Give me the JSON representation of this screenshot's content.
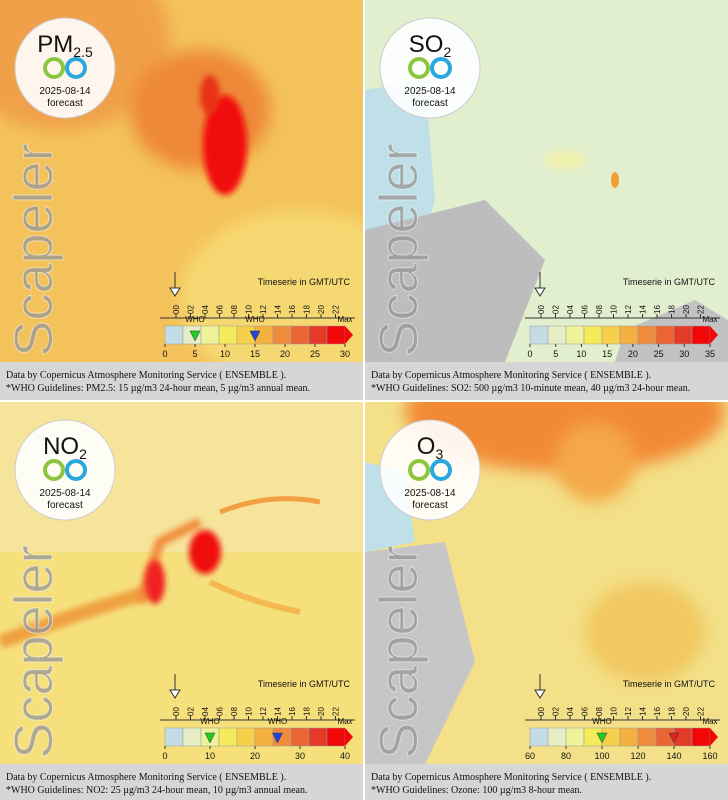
{
  "scale_colors": [
    "#c4dce6",
    "#e6eec6",
    "#eef29a",
    "#f4ea5a",
    "#f6d04a",
    "#f4b040",
    "#ee8c3c",
    "#ea6434",
    "#e43a28",
    "#f00808"
  ],
  "panels": [
    {
      "pollutant": "PM",
      "subscript": "2.5",
      "date": "2025-08-14",
      "label": "forecast",
      "watermark": "Scapeler",
      "timeserie": "Timeserie in GMT/UTC",
      "hours": [
        "00",
        "02",
        "04",
        "06",
        "08",
        "10",
        "12",
        "14",
        "16",
        "18",
        "20",
        "22"
      ],
      "scale_ticks": [
        0,
        5,
        10,
        15,
        20,
        25,
        30
      ],
      "max_label": "Max",
      "who_markers": [
        {
          "value": 5,
          "color": "#22cc22",
          "label": "WHO"
        },
        {
          "value": 15,
          "color": "#2244dd",
          "label": "WHO"
        }
      ],
      "footer": [
        "Data by Copernicus Atmosphere Monitoring Service ( ENSEMBLE ).",
        "*WHO Guidelines: PM2.5: 15 µg/m3 24-hour mean, 5 µg/m3 annual mean."
      ]
    },
    {
      "pollutant": "SO",
      "subscript": "2",
      "date": "2025-08-14",
      "label": "forecast",
      "watermark": "Scapeler",
      "timeserie": "Timeserie in GMT/UTC",
      "hours": [
        "00",
        "02",
        "04",
        "06",
        "08",
        "10",
        "12",
        "14",
        "16",
        "18",
        "20",
        "22"
      ],
      "scale_ticks": [
        0,
        5,
        10,
        15,
        20,
        25,
        30,
        35
      ],
      "max_label": "Max",
      "who_markers": [],
      "footer": [
        "Data by Copernicus Atmosphere Monitoring Service ( ENSEMBLE ).",
        "*WHO Guidelines: SO2: 500 µg/m3 10-minute mean, 40 µg/m3 24-hour mean."
      ]
    },
    {
      "pollutant": "NO",
      "subscript": "2",
      "date": "2025-08-14",
      "label": "forecast",
      "watermark": "Scapeler",
      "timeserie": "Timeserie in GMT/UTC",
      "hours": [
        "00",
        "02",
        "04",
        "06",
        "08",
        "10",
        "12",
        "14",
        "16",
        "18",
        "20",
        "22"
      ],
      "scale_ticks": [
        0,
        10,
        20,
        30,
        40
      ],
      "max_label": "Max",
      "who_markers": [
        {
          "value": 10,
          "color": "#22cc22",
          "label": "WHO"
        },
        {
          "value": 25,
          "color": "#2244dd",
          "label": "WHO"
        }
      ],
      "footer": [
        "Data by Copernicus Atmosphere Monitoring Service ( ENSEMBLE ).",
        "*WHO Guidelines: NO2: 25 µg/m3 24-hour mean, 10 µg/m3 annual mean."
      ]
    },
    {
      "pollutant": "O",
      "subscript": "3",
      "date": "2025-08-14",
      "label": "forecast",
      "watermark": "Scapeler",
      "timeserie": "Timeserie in GMT/UTC",
      "hours": [
        "00",
        "02",
        "04",
        "06",
        "08",
        "10",
        "12",
        "14",
        "16",
        "18",
        "20",
        "22"
      ],
      "scale_ticks": [
        60,
        80,
        100,
        120,
        140,
        160
      ],
      "max_label": "Max",
      "who_markers": [
        {
          "value": 100,
          "color": "#22cc22",
          "label": "WHO"
        },
        {
          "value": 140,
          "color": "#dd2222"
        }
      ],
      "footer": [
        "Data by Copernicus Atmosphere Monitoring Service ( ENSEMBLE ).",
        "*WHO Guidelines: Ozone: 100 µg/m3 8-hour mean."
      ]
    }
  ]
}
